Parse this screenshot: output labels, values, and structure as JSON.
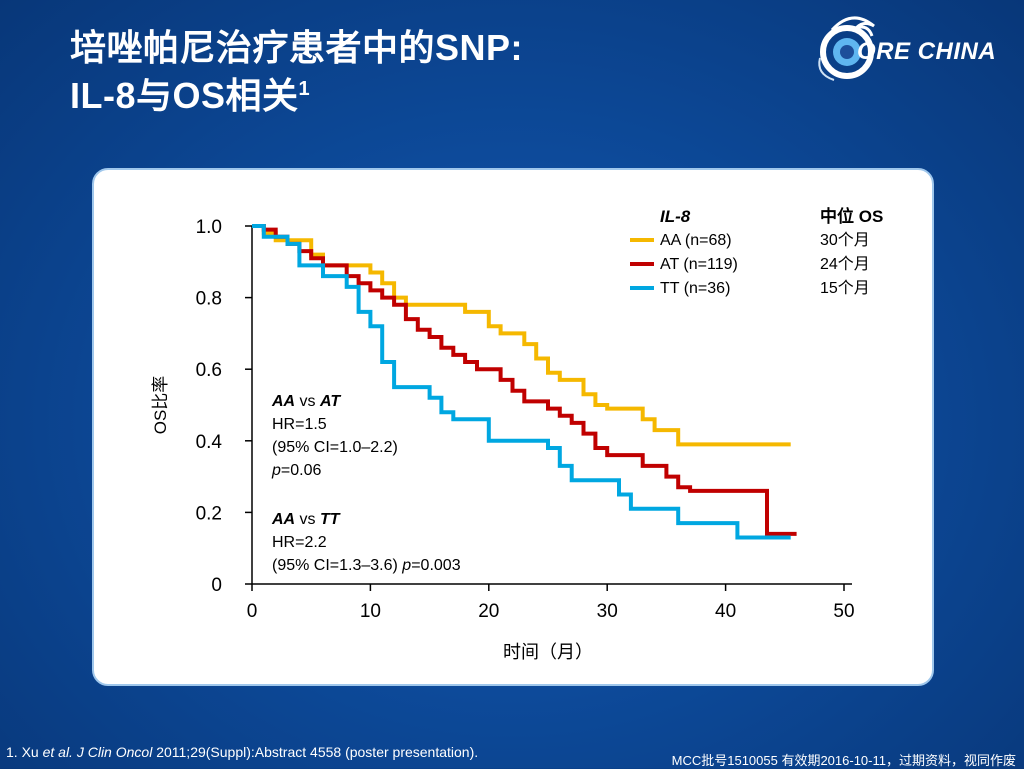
{
  "slide": {
    "title_line1": "培唑帕尼治疗患者中的SNP:",
    "title_line2": "IL-8与OS相关",
    "title_sup": "1",
    "logo_text": "ORE CHINA",
    "footer_ref_1": "1. Xu ",
    "footer_ref_2": "et al. J Clin Oncol",
    "footer_ref_3": " 2011;29(Suppl):Abstract  4558 (poster presentation).",
    "footer_right": "MCC批号1510055 有效期2016-10-11，过期资料，视同作废"
  },
  "chart_data": {
    "type": "line",
    "xlabel": "时间（月）",
    "ylabel": "OS比率",
    "xlim": [
      0,
      50
    ],
    "ylim": [
      0,
      1.0
    ],
    "xticks": [
      "0",
      "10",
      "20",
      "30",
      "40",
      "50"
    ],
    "yticks": [
      "0",
      "0.2",
      "0.4",
      "0.6",
      "0.8",
      "1.0"
    ],
    "legend_header": "IL-8",
    "median_header": "中位 OS",
    "legend_placement": "top-right",
    "series": [
      {
        "name": "AA (n=68)",
        "median": "30个月",
        "color": "#f5b800",
        "points": [
          [
            0,
            1.0
          ],
          [
            1,
            1.0
          ],
          [
            1,
            0.98
          ],
          [
            2,
            0.98
          ],
          [
            2,
            0.96
          ],
          [
            5,
            0.96
          ],
          [
            5,
            0.92
          ],
          [
            6,
            0.92
          ],
          [
            6,
            0.89
          ],
          [
            10,
            0.89
          ],
          [
            10,
            0.87
          ],
          [
            11,
            0.87
          ],
          [
            11,
            0.84
          ],
          [
            12,
            0.84
          ],
          [
            12,
            0.8
          ],
          [
            13,
            0.8
          ],
          [
            13,
            0.78
          ],
          [
            18,
            0.78
          ],
          [
            18,
            0.76
          ],
          [
            20,
            0.76
          ],
          [
            20,
            0.72
          ],
          [
            21,
            0.72
          ],
          [
            21,
            0.7
          ],
          [
            23,
            0.7
          ],
          [
            23,
            0.67
          ],
          [
            24,
            0.67
          ],
          [
            24,
            0.63
          ],
          [
            25,
            0.63
          ],
          [
            25,
            0.59
          ],
          [
            26,
            0.59
          ],
          [
            26,
            0.57
          ],
          [
            28,
            0.57
          ],
          [
            28,
            0.53
          ],
          [
            29,
            0.53
          ],
          [
            29,
            0.5
          ],
          [
            30,
            0.5
          ],
          [
            30,
            0.49
          ],
          [
            33,
            0.49
          ],
          [
            33,
            0.46
          ],
          [
            34,
            0.46
          ],
          [
            34,
            0.43
          ],
          [
            36,
            0.43
          ],
          [
            36,
            0.39
          ],
          [
            45.5,
            0.39
          ]
        ]
      },
      {
        "name": "AT (n=119)",
        "median": "24个月",
        "color": "#c00000",
        "points": [
          [
            0,
            1.0
          ],
          [
            1,
            1.0
          ],
          [
            1,
            0.99
          ],
          [
            2,
            0.99
          ],
          [
            2,
            0.97
          ],
          [
            3,
            0.97
          ],
          [
            3,
            0.95
          ],
          [
            4,
            0.95
          ],
          [
            4,
            0.93
          ],
          [
            5,
            0.93
          ],
          [
            5,
            0.91
          ],
          [
            6,
            0.91
          ],
          [
            6,
            0.89
          ],
          [
            8,
            0.89
          ],
          [
            8,
            0.86
          ],
          [
            9,
            0.86
          ],
          [
            9,
            0.84
          ],
          [
            10,
            0.84
          ],
          [
            10,
            0.82
          ],
          [
            11,
            0.82
          ],
          [
            11,
            0.8
          ],
          [
            12,
            0.8
          ],
          [
            12,
            0.78
          ],
          [
            13,
            0.78
          ],
          [
            13,
            0.74
          ],
          [
            14,
            0.74
          ],
          [
            14,
            0.71
          ],
          [
            15,
            0.71
          ],
          [
            15,
            0.69
          ],
          [
            16,
            0.69
          ],
          [
            16,
            0.66
          ],
          [
            17,
            0.66
          ],
          [
            17,
            0.64
          ],
          [
            18,
            0.64
          ],
          [
            18,
            0.62
          ],
          [
            19,
            0.62
          ],
          [
            19,
            0.6
          ],
          [
            21,
            0.6
          ],
          [
            21,
            0.57
          ],
          [
            22,
            0.57
          ],
          [
            22,
            0.54
          ],
          [
            23,
            0.54
          ],
          [
            23,
            0.51
          ],
          [
            25,
            0.51
          ],
          [
            25,
            0.49
          ],
          [
            26,
            0.49
          ],
          [
            26,
            0.47
          ],
          [
            27,
            0.47
          ],
          [
            27,
            0.45
          ],
          [
            28,
            0.45
          ],
          [
            28,
            0.42
          ],
          [
            29,
            0.42
          ],
          [
            29,
            0.38
          ],
          [
            30,
            0.38
          ],
          [
            30,
            0.36
          ],
          [
            33,
            0.36
          ],
          [
            33,
            0.33
          ],
          [
            35,
            0.33
          ],
          [
            35,
            0.3
          ],
          [
            36,
            0.3
          ],
          [
            36,
            0.27
          ],
          [
            37,
            0.27
          ],
          [
            37,
            0.26
          ],
          [
            43.5,
            0.26
          ],
          [
            43.5,
            0.14
          ],
          [
            46,
            0.14
          ]
        ]
      },
      {
        "name": "TT (n=36)",
        "median": "15个月",
        "color": "#00a7e1",
        "points": [
          [
            0,
            1.0
          ],
          [
            1,
            1.0
          ],
          [
            1,
            0.97
          ],
          [
            3,
            0.97
          ],
          [
            3,
            0.95
          ],
          [
            4,
            0.95
          ],
          [
            4,
            0.89
          ],
          [
            6,
            0.89
          ],
          [
            6,
            0.86
          ],
          [
            8,
            0.86
          ],
          [
            8,
            0.83
          ],
          [
            9,
            0.83
          ],
          [
            9,
            0.76
          ],
          [
            10,
            0.76
          ],
          [
            10,
            0.72
          ],
          [
            11,
            0.72
          ],
          [
            11,
            0.62
          ],
          [
            12,
            0.62
          ],
          [
            12,
            0.55
          ],
          [
            15,
            0.55
          ],
          [
            15,
            0.52
          ],
          [
            16,
            0.52
          ],
          [
            16,
            0.48
          ],
          [
            17,
            0.48
          ],
          [
            17,
            0.46
          ],
          [
            20,
            0.46
          ],
          [
            20,
            0.4
          ],
          [
            25,
            0.4
          ],
          [
            25,
            0.38
          ],
          [
            26,
            0.38
          ],
          [
            26,
            0.33
          ],
          [
            27,
            0.33
          ],
          [
            27,
            0.29
          ],
          [
            31,
            0.29
          ],
          [
            31,
            0.25
          ],
          [
            32,
            0.25
          ],
          [
            32,
            0.21
          ],
          [
            36,
            0.21
          ],
          [
            36,
            0.17
          ],
          [
            41,
            0.17
          ],
          [
            41,
            0.13
          ],
          [
            45.5,
            0.13
          ]
        ]
      }
    ],
    "annotations": {
      "aa_at": {
        "g1": "AA",
        "vs": " vs ",
        "g2": "AT",
        "hr": "HR=1.5",
        "ci": "(95% CI=1.0–2.2)",
        "p_letter": "p",
        "p_value": "=0.06"
      },
      "aa_tt": {
        "g1": "AA",
        "vs": " vs ",
        "g2": "TT",
        "hr": "HR=2.2",
        "ci": "(95% CI=1.3–3.6) ",
        "p_letter": "p",
        "p_value": "=0.003"
      }
    }
  }
}
